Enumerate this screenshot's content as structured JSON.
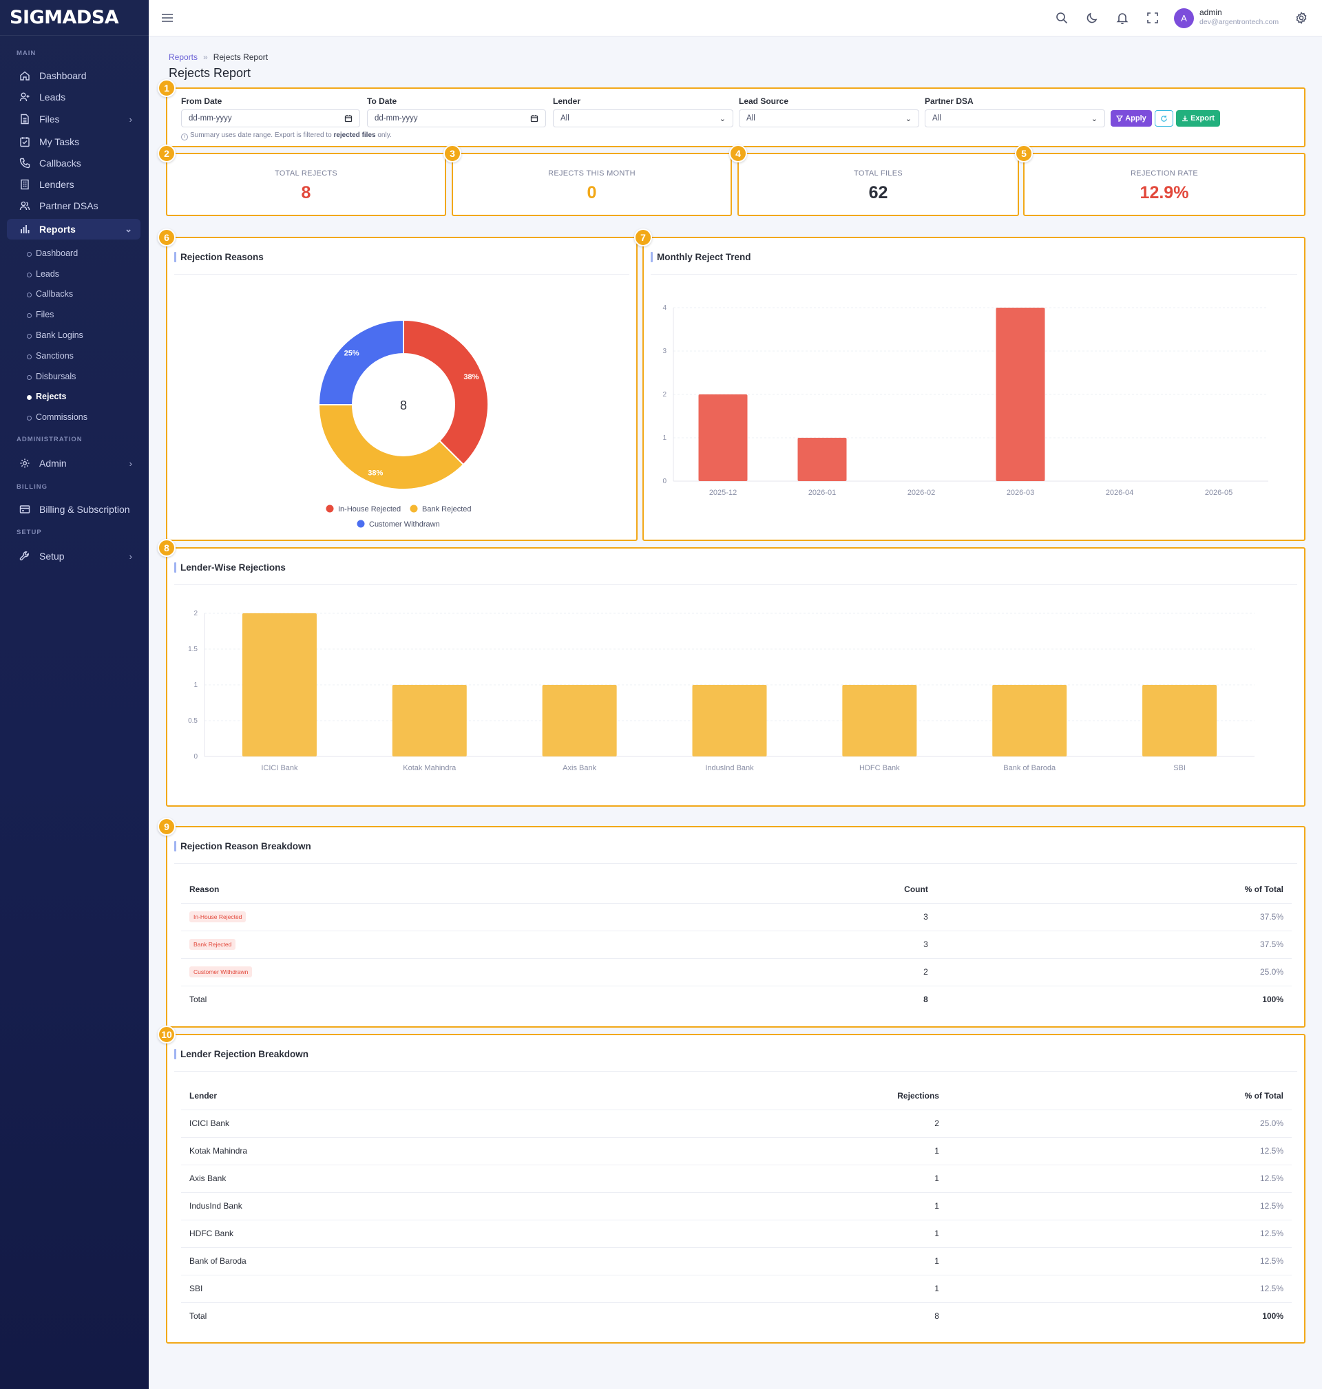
{
  "app": {
    "brand": "SIGMADSA"
  },
  "sidebar": {
    "sections": {
      "main": "MAIN",
      "administration": "ADMINISTRATION",
      "billing": "BILLING",
      "setup": "SETUP"
    },
    "items": [
      {
        "label": "Dashboard",
        "icon": "home-icon"
      },
      {
        "label": "Leads",
        "icon": "user-plus-icon"
      },
      {
        "label": "Files",
        "icon": "file-icon"
      },
      {
        "label": "My Tasks",
        "icon": "task-icon"
      },
      {
        "label": "Callbacks",
        "icon": "phone-icon"
      },
      {
        "label": "Lenders",
        "icon": "building-icon"
      },
      {
        "label": "Partner DSAs",
        "icon": "users-icon"
      },
      {
        "label": "Reports",
        "icon": "bar-chart-icon"
      }
    ],
    "report_subitems": [
      "Dashboard",
      "Leads",
      "Callbacks",
      "Files",
      "Bank Logins",
      "Sanctions",
      "Disbursals",
      "Rejects",
      "Commissions"
    ],
    "admin": {
      "label": "Admin",
      "icon": "gear-icon"
    },
    "billing": {
      "label": "Billing & Subscription",
      "icon": "card-icon"
    },
    "setup": {
      "label": "Setup",
      "icon": "wrench-icon"
    }
  },
  "topbar": {
    "user_initial": "A",
    "user_name": "admin",
    "user_email": "dev@argentrontech.com"
  },
  "breadcrumb": {
    "parent": "Reports",
    "separator": "»",
    "current": "Rejects Report"
  },
  "page_title": "Rejects Report",
  "filters": {
    "from_date": {
      "label": "From Date",
      "value": "dd-mm-yyyy"
    },
    "to_date": {
      "label": "To Date",
      "value": "dd-mm-yyyy"
    },
    "lender": {
      "label": "Lender",
      "value": "All"
    },
    "lead_source": {
      "label": "Lead Source",
      "value": "All"
    },
    "partner_dsa": {
      "label": "Partner DSA",
      "value": "All"
    },
    "apply_label": "Apply",
    "export_label": "Export",
    "hint_prefix": "Summary uses date range. Export is filtered to",
    "hint_bold": "rejected files",
    "hint_suffix": "only."
  },
  "badges": [
    "1",
    "2",
    "3",
    "4",
    "5",
    "6",
    "7",
    "8",
    "9",
    "10"
  ],
  "kpis": [
    {
      "label": "TOTAL REJECTS",
      "value": "8",
      "color": "#e2483b"
    },
    {
      "label": "REJECTS THIS MONTH",
      "value": "0",
      "color": "#f2a818"
    },
    {
      "label": "TOTAL FILES",
      "value": "62",
      "color": "#2b2f3a"
    },
    {
      "label": "REJECTION RATE",
      "value": "12.9%",
      "color": "#e2483b"
    }
  ],
  "cards": {
    "rejection_reasons": "Rejection Reasons",
    "monthly_trend": "Monthly Reject Trend",
    "lender_wise": "Lender-Wise Rejections",
    "reason_breakdown": "Rejection Reason Breakdown",
    "lender_breakdown": "Lender Rejection Breakdown"
  },
  "chart_data": [
    {
      "type": "pie",
      "donut": true,
      "center_label": "8",
      "categories": [
        "In-House Rejected",
        "Bank Rejected",
        "Customer Withdrawn"
      ],
      "values": [
        3,
        3,
        2
      ],
      "slice_labels": [
        "38%",
        "38%",
        "25%"
      ],
      "colors": [
        "#e74c3c",
        "#f6b731",
        "#4b6ef0"
      ],
      "legend": "bottom"
    },
    {
      "type": "bar",
      "categories": [
        "2025-12",
        "2026-01",
        "2026-02",
        "2026-03",
        "2026-04",
        "2026-05"
      ],
      "values": [
        2,
        1,
        0,
        4,
        0,
        0
      ],
      "ylim": [
        0,
        4
      ],
      "yticks": [
        "0",
        "1",
        "2",
        "3",
        "4"
      ],
      "color": "#ec6558",
      "grid": true
    },
    {
      "type": "bar",
      "categories": [
        "ICICI Bank",
        "Kotak Mahindra",
        "Axis Bank",
        "IndusInd Bank",
        "HDFC Bank",
        "Bank of Baroda",
        "SBI"
      ],
      "values": [
        2,
        1,
        1,
        1,
        1,
        1,
        1
      ],
      "ylim": [
        0,
        2
      ],
      "yticks": [
        "0",
        "0.5",
        "1",
        "1.5",
        "2"
      ],
      "color": "#f6c04e",
      "grid": true
    }
  ],
  "reason_table": {
    "headers": [
      "Reason",
      "Count",
      "% of Total"
    ],
    "rows": [
      {
        "reason": "In-House Rejected",
        "count": "3",
        "pct": "37.5%"
      },
      {
        "reason": "Bank Rejected",
        "count": "3",
        "pct": "37.5%"
      },
      {
        "reason": "Customer Withdrawn",
        "count": "2",
        "pct": "25.0%"
      }
    ],
    "total": {
      "label": "Total",
      "count": "8",
      "pct": "100%"
    }
  },
  "lender_table": {
    "headers": [
      "Lender",
      "Rejections",
      "% of Total"
    ],
    "rows": [
      {
        "lender": "ICICI Bank",
        "count": "2",
        "pct": "25.0%"
      },
      {
        "lender": "Kotak Mahindra",
        "count": "1",
        "pct": "12.5%"
      },
      {
        "lender": "Axis Bank",
        "count": "1",
        "pct": "12.5%"
      },
      {
        "lender": "IndusInd Bank",
        "count": "1",
        "pct": "12.5%"
      },
      {
        "lender": "HDFC Bank",
        "count": "1",
        "pct": "12.5%"
      },
      {
        "lender": "Bank of Baroda",
        "count": "1",
        "pct": "12.5%"
      },
      {
        "lender": "SBI",
        "count": "1",
        "pct": "12.5%"
      }
    ],
    "total": {
      "label": "Total",
      "count": "8",
      "pct": "100%"
    }
  }
}
